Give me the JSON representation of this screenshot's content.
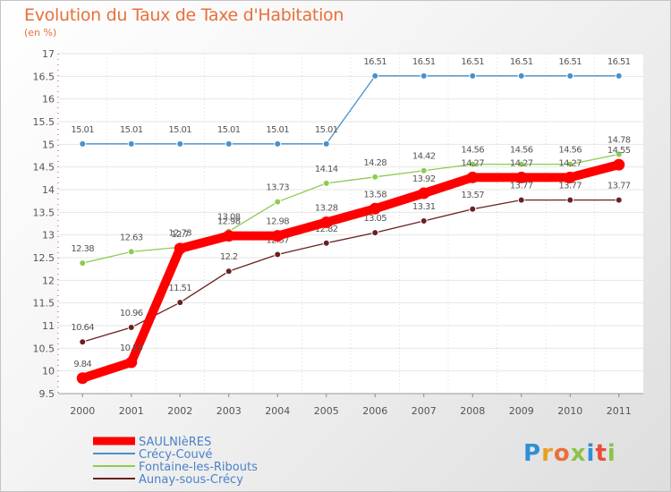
{
  "header": {
    "title": "Evolution du Taux de Taxe d'Habitation",
    "subtitle": "(en %)"
  },
  "logo": {
    "text": "Proxiti",
    "colors": [
      "#2f8fd4",
      "#e8a020",
      "#e8703a",
      "#8bc34a",
      "#2f8fd4",
      "#e84c3a",
      "#8bc34a"
    ]
  },
  "chart_data": {
    "type": "line",
    "x": [
      2000,
      2001,
      2002,
      2003,
      2004,
      2005,
      2006,
      2007,
      2008,
      2009,
      2010,
      2011
    ],
    "ylim": [
      9.5,
      17
    ],
    "yticks": [
      9.5,
      10,
      10.5,
      11,
      11.5,
      12,
      12.5,
      13,
      13.5,
      14,
      14.5,
      15,
      15.5,
      16,
      16.5,
      17
    ],
    "grid": "horizontal",
    "legend_position": "bottom-left",
    "series": [
      {
        "name": "Crécy-Couvé",
        "color": "#4a90c8",
        "values": [
          15.01,
          15.01,
          15.01,
          15.01,
          15.01,
          15.01,
          16.51,
          16.51,
          16.51,
          16.51,
          16.51,
          16.51
        ]
      },
      {
        "name": "Fontaine-les-Ribouts",
        "color": "#8ccc50",
        "values": [
          12.38,
          12.63,
          12.73,
          13.08,
          13.73,
          14.14,
          14.28,
          14.42,
          14.56,
          14.56,
          14.56,
          14.78
        ]
      },
      {
        "name": "Aunay-sous-Crécy",
        "color": "#6a2020",
        "values": [
          10.64,
          10.96,
          11.51,
          12.2,
          12.57,
          12.82,
          13.05,
          13.31,
          13.57,
          13.77,
          13.77,
          13.77
        ]
      },
      {
        "name": "SAULNIèRES",
        "color": "#ff0000",
        "values": [
          9.84,
          10.19,
          12.7,
          12.98,
          12.98,
          13.28,
          13.58,
          13.92,
          14.27,
          14.27,
          14.27,
          14.55
        ]
      }
    ]
  }
}
